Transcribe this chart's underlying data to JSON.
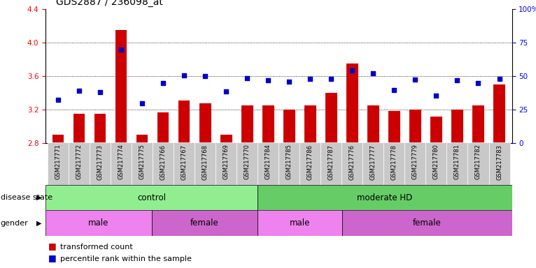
{
  "title": "GDS2887 / 236098_at",
  "samples": [
    "GSM217771",
    "GSM217772",
    "GSM217773",
    "GSM217774",
    "GSM217775",
    "GSM217766",
    "GSM217767",
    "GSM217768",
    "GSM217769",
    "GSM217770",
    "GSM217784",
    "GSM217785",
    "GSM217786",
    "GSM217787",
    "GSM217776",
    "GSM217777",
    "GSM217778",
    "GSM217779",
    "GSM217780",
    "GSM217781",
    "GSM217782",
    "GSM217783"
  ],
  "bar_values": [
    2.9,
    3.15,
    3.15,
    4.15,
    2.9,
    3.17,
    3.31,
    3.28,
    2.9,
    3.25,
    3.25,
    3.2,
    3.25,
    3.4,
    3.75,
    3.25,
    3.19,
    3.2,
    3.12,
    3.2,
    3.25,
    3.5
  ],
  "dot_values": [
    3.32,
    3.43,
    3.41,
    3.92,
    3.28,
    3.52,
    3.61,
    3.6,
    3.42,
    3.58,
    3.55,
    3.54,
    3.57,
    3.57,
    3.67,
    3.64,
    3.44,
    3.56,
    3.37,
    3.55,
    3.52,
    3.57
  ],
  "bar_color": "#CC0000",
  "dot_color": "#0000CC",
  "ylim_left": [
    2.8,
    4.4
  ],
  "ylim_right": [
    0,
    100
  ],
  "yticks_left": [
    2.8,
    3.2,
    3.6,
    4.0,
    4.4
  ],
  "yticks_right": [
    0,
    25,
    50,
    75,
    100
  ],
  "ytick_labels_right": [
    "0",
    "25",
    "50",
    "75",
    "100%"
  ],
  "grid_values": [
    3.2,
    3.6,
    4.0
  ],
  "bar_baseline": 2.8,
  "title_fontsize": 10,
  "tick_fontsize": 7.5,
  "label_fontsize": 8.5,
  "annotation_fontsize": 8,
  "sample_fontsize": 6,
  "bar_color_hex": "#CC0000",
  "dot_color_hex": "#0000CC",
  "disease_control_color": "#90EE90",
  "disease_moderate_color": "#66CC66",
  "gender_male_color": "#EE82EE",
  "gender_female_color": "#CC66CC",
  "sample_bg_color": "#C8C8C8"
}
